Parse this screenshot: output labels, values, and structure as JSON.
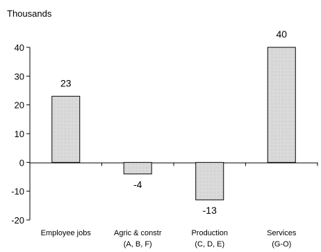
{
  "chart_data": {
    "type": "bar",
    "ylabel": "Thousands",
    "ylim": [
      -20,
      40
    ],
    "yticks": [
      -20,
      -10,
      0,
      10,
      20,
      30,
      40
    ],
    "grid": false,
    "categories": [
      {
        "line1": "Employee jobs",
        "line2": ""
      },
      {
        "line1": "Agric & constr",
        "line2": "(A, B, F)"
      },
      {
        "line1": "Production",
        "line2": "(C, D, E)"
      },
      {
        "line1": "Services",
        "line2": "(G-O)"
      }
    ],
    "values": [
      23,
      -4,
      -13,
      40
    ],
    "data_labels": [
      "23",
      "-4",
      "-13",
      "40"
    ],
    "colors": {
      "bar_fill": "#e8e8e8",
      "bar_stroke": "#000000",
      "axis": "#000000"
    }
  }
}
